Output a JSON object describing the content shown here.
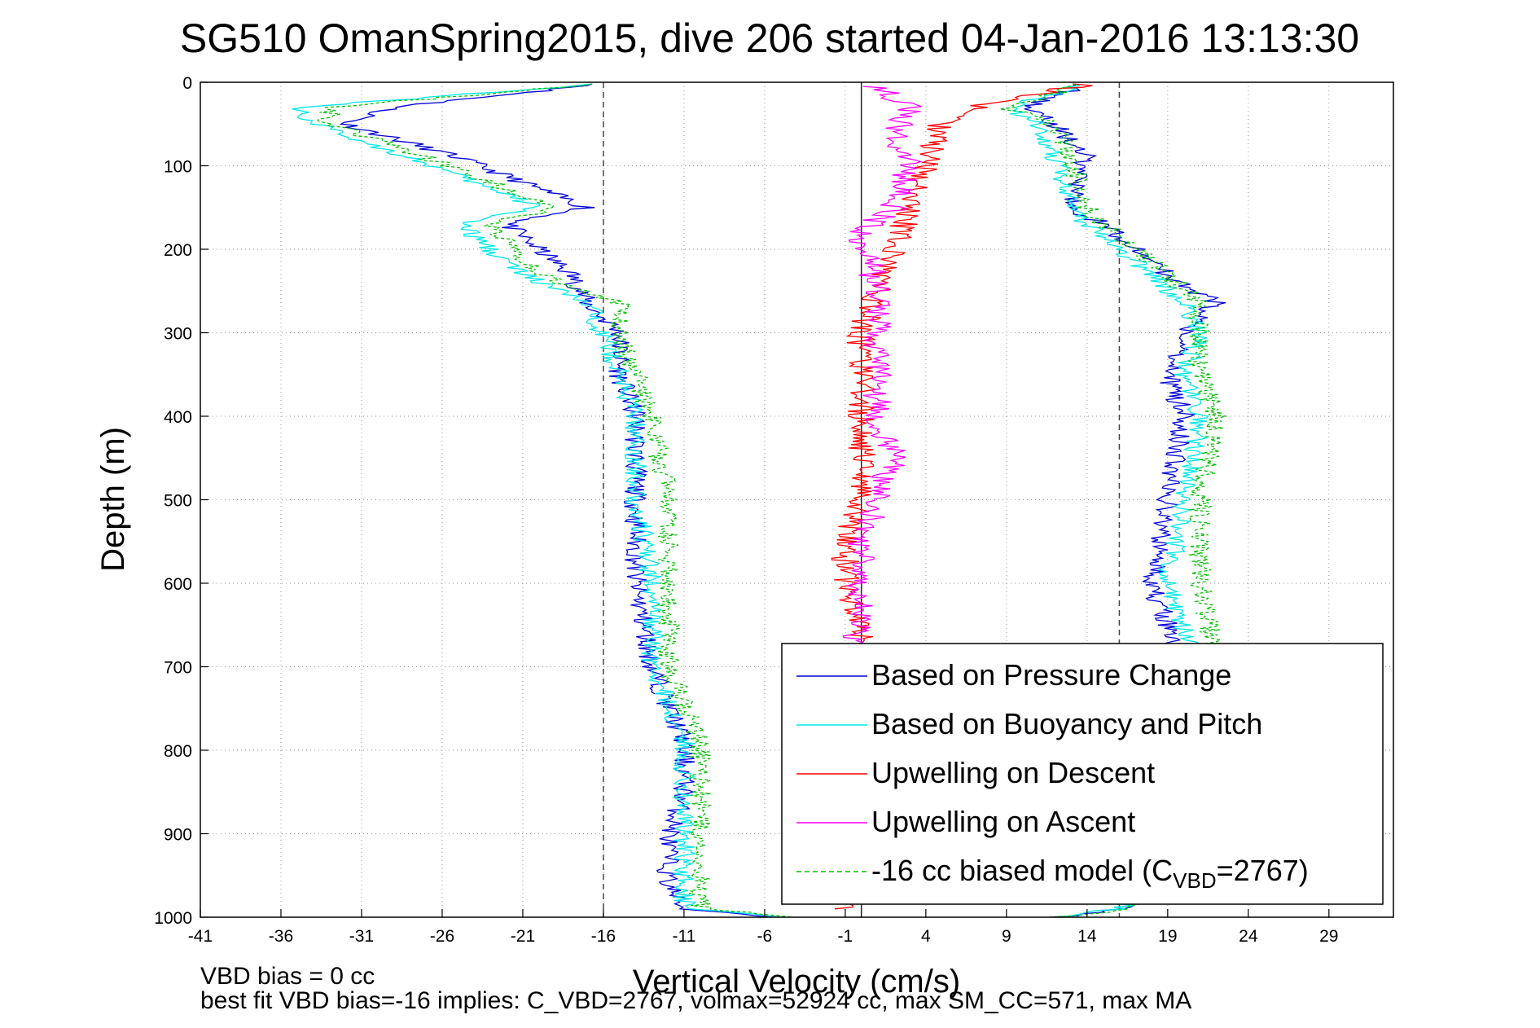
{
  "chart_data": {
    "type": "line",
    "title": "SG510 OmanSpring2015, dive 206 started 04-Jan-2016 13:13:30",
    "xlabel": "Vertical Velocity (cm/s)",
    "ylabel": "Depth (m)",
    "xlim": [
      -41,
      33
    ],
    "ylim": [
      0,
      1000
    ],
    "y_reversed": true,
    "grid": true,
    "x_ticks": [
      "-41",
      "-36",
      "-31",
      "-26",
      "-21",
      "-16",
      "-11",
      "-6",
      "-1",
      "4",
      "9",
      "14",
      "19",
      "24",
      "29"
    ],
    "y_ticks": [
      "0",
      "100",
      "200",
      "300",
      "400",
      "500",
      "600",
      "700",
      "800",
      "900",
      "1000"
    ],
    "reference_lines": {
      "dashed": [
        -16,
        16
      ],
      "solid": [
        0
      ]
    },
    "legend_position": "bottom-right",
    "series": [
      {
        "name": "Based on Pressure Change",
        "color": "#0000d8",
        "style": "solid",
        "depth": [
          2,
          30,
          50,
          90,
          150,
          170,
          230,
          265,
          300,
          350,
          400,
          500,
          600,
          700,
          790,
          850,
          910,
          960,
          990,
          1000
        ],
        "velocity": [
          -16,
          -29,
          -32,
          -25,
          -17,
          -22,
          -18,
          -17,
          -15,
          -15,
          -14,
          -14,
          -14,
          -13,
          -11,
          -11,
          -12,
          -12,
          -11,
          -5
        ],
        "velocity_ascent": [
          14,
          10,
          12,
          14,
          13,
          15,
          19,
          22,
          20,
          19,
          20,
          19,
          18,
          20,
          22,
          21,
          19,
          18,
          16,
          12
        ]
      },
      {
        "name": "Based on Buoyancy and Pitch",
        "color": "#00e8e8",
        "style": "solid",
        "depth": [
          2,
          30,
          50,
          90,
          150,
          170,
          230,
          265,
          300,
          350,
          400,
          500,
          600,
          700,
          790,
          850,
          910,
          960,
          990,
          1000
        ],
        "velocity": [
          -16,
          -35,
          -34,
          -28,
          -20,
          -25,
          -21,
          -17,
          -16,
          -15,
          -14,
          -14,
          -13,
          -13,
          -11,
          -11,
          -11,
          -11,
          -11,
          -5
        ],
        "velocity_ascent": [
          14,
          9,
          11,
          12,
          13,
          14,
          18,
          20,
          21,
          20,
          21,
          20,
          19,
          21,
          22,
          21,
          19,
          18,
          16,
          12
        ]
      },
      {
        "name": "Upwelling on Descent",
        "color": "#ff0000",
        "style": "solid",
        "depth": [
          2,
          30,
          50,
          100,
          150,
          200,
          250,
          300,
          350,
          400,
          450,
          500,
          550,
          600,
          650,
          700,
          800,
          900,
          990
        ],
        "velocity": [
          14,
          7,
          5,
          4,
          3,
          2,
          1,
          0,
          0,
          0,
          0,
          0,
          -1,
          -1,
          0,
          0,
          0,
          0,
          -1
        ]
      },
      {
        "name": "Upwelling on Ascent",
        "color": "#ff00ff",
        "style": "solid",
        "depth": [
          5,
          30,
          60,
          100,
          150,
          180,
          250,
          300,
          350,
          400,
          450,
          500,
          550,
          600,
          650,
          680
        ],
        "velocity": [
          1,
          3,
          2,
          3,
          2,
          0,
          1,
          1,
          1,
          1,
          2,
          1,
          0,
          0,
          0,
          -1
        ]
      },
      {
        "name": "-16 cc biased model (C_VBD=2767)",
        "color": "#00c000",
        "style": "dashed",
        "depth": [
          2,
          30,
          50,
          90,
          150,
          170,
          230,
          265,
          300,
          350,
          400,
          500,
          600,
          700,
          790,
          850,
          910,
          960,
          990,
          1000
        ],
        "velocity": [
          -16,
          -33,
          -33,
          -27,
          -19,
          -23,
          -20,
          -15,
          -15,
          -14,
          -13,
          -12,
          -12,
          -12,
          -10,
          -10,
          -10,
          -10,
          -10,
          -4
        ],
        "velocity_ascent": [
          14,
          9,
          12,
          13,
          14,
          15,
          19,
          21,
          21,
          21,
          22,
          21,
          21,
          22,
          23,
          22,
          20,
          19,
          17,
          12
        ]
      }
    ],
    "legend": [
      {
        "label": "Based on Pressure Change",
        "color": "#0000d8",
        "dashed": false
      },
      {
        "label": "Based on Buoyancy and Pitch",
        "color": "#00e8e8",
        "dashed": false
      },
      {
        "label": "Upwelling on Descent",
        "color": "#ff0000",
        "dashed": false
      },
      {
        "label": "Upwelling on Ascent",
        "color": "#ff00ff",
        "dashed": false
      },
      {
        "label": "-16 cc biased model (C",
        "sub": "VBD",
        "suffix": "=2767)",
        "color": "#00c000",
        "dashed": true
      }
    ]
  },
  "footer": {
    "line1": "VBD bias = 0 cc",
    "line2": "best fit VBD bias=-16 implies: C_VBD=2767, volmax=52924 cc, max SM_CC=571, max MA"
  }
}
